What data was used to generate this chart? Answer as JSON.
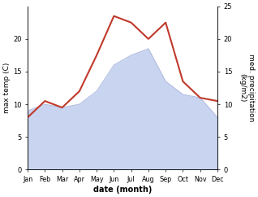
{
  "months": [
    "Jan",
    "Feb",
    "Mar",
    "Apr",
    "May",
    "Jun",
    "Jul",
    "Aug",
    "Sep",
    "Oct",
    "Nov",
    "Dec"
  ],
  "month_positions": [
    1,
    2,
    3,
    4,
    5,
    6,
    7,
    8,
    9,
    10,
    11,
    12
  ],
  "temp_data": [
    8.0,
    10.5,
    9.5,
    12.0,
    17.5,
    23.5,
    22.5,
    20.0,
    22.5,
    13.5,
    11.0,
    10.5
  ],
  "precip_data": [
    9.0,
    10.0,
    9.5,
    10.0,
    12.0,
    16.0,
    17.5,
    18.5,
    13.5,
    11.5,
    11.0,
    8.0
  ],
  "temp_color": "#c0392b",
  "precip_fill_color": "#c8d4f0",
  "precip_edge_color": "#b0bce0",
  "ylabel_left": "max temp (C)",
  "ylabel_right": "med. precipitation\n(kg/m2)",
  "xlabel": "date (month)",
  "ylim_left": [
    0,
    25
  ],
  "ylim_right": [
    0,
    25
  ],
  "yticks_left": [
    0,
    5,
    10,
    15,
    20
  ],
  "yticks_right": [
    0,
    5,
    10,
    15,
    20,
    25
  ],
  "background_color": "#ffffff",
  "figsize": [
    3.18,
    2.42
  ],
  "dpi": 100
}
